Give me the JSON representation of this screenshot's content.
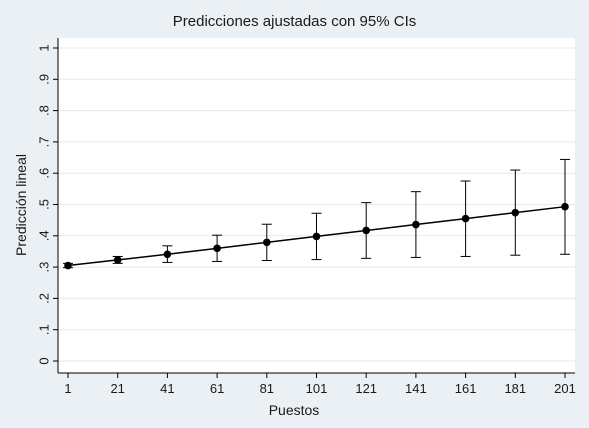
{
  "chart_data": {
    "type": "line",
    "title": "Predicciones ajustadas con 95% CIs",
    "xlabel": "Puestos",
    "ylabel": "Predicción lineal",
    "x": [
      1,
      21,
      41,
      61,
      81,
      101,
      121,
      141,
      161,
      181,
      201
    ],
    "x_ticks": [
      "1",
      "21",
      "41",
      "61",
      "81",
      "101",
      "121",
      "141",
      "161",
      "181",
      "201"
    ],
    "y_ticks": [
      {
        "value": 0,
        "label": "0"
      },
      {
        "value": 0.1,
        "label": ".1"
      },
      {
        "value": 0.2,
        "label": ".2"
      },
      {
        "value": 0.3,
        "label": ".3"
      },
      {
        "value": 0.4,
        "label": ".4"
      },
      {
        "value": 0.5,
        "label": ".5"
      },
      {
        "value": 0.6,
        "label": ".6"
      },
      {
        "value": 0.7,
        "label": ".7"
      },
      {
        "value": 0.8,
        "label": ".8"
      },
      {
        "value": 0.9,
        "label": ".9"
      },
      {
        "value": 1,
        "label": "1"
      }
    ],
    "xlim": [
      1,
      201
    ],
    "ylim": [
      0,
      1
    ],
    "grid": true,
    "series": [
      {
        "values": [
          0.305,
          0.323,
          0.341,
          0.36,
          0.379,
          0.398,
          0.417,
          0.436,
          0.455,
          0.474,
          0.493
        ],
        "ci_lower": [
          0.298,
          0.312,
          0.315,
          0.318,
          0.321,
          0.324,
          0.328,
          0.331,
          0.334,
          0.338,
          0.341
        ],
        "ci_upper": [
          0.312,
          0.334,
          0.368,
          0.402,
          0.437,
          0.472,
          0.506,
          0.541,
          0.575,
          0.61,
          0.644
        ]
      }
    ],
    "colors": {
      "background": "#eaf0f3",
      "plot_background": "#ffffff",
      "grid": "#e6e9ec",
      "line": "#000000"
    }
  }
}
